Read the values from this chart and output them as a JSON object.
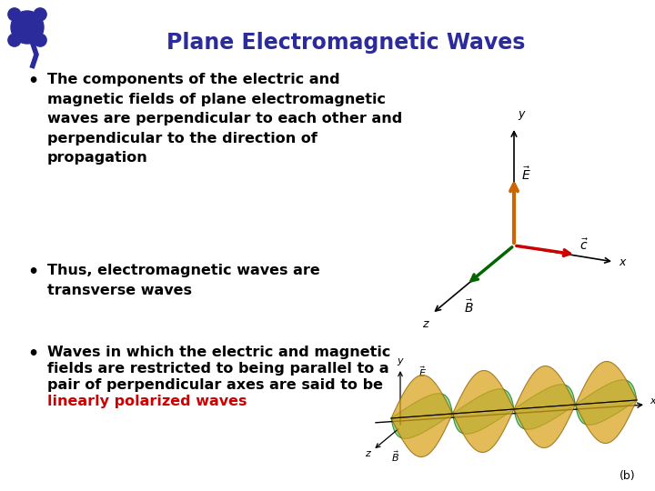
{
  "title": "Plane Electromagnetic Waves",
  "title_color": "#2B2B9B",
  "title_fontsize": 17,
  "background_color": "#FFFFFF",
  "bullet1": "The components of the electric and\nmagnetic fields of plane electromagnetic\nwaves are perpendicular to each other and\nperpendicular to the direction of\npropagation",
  "bullet2": "Thus, electromagnetic waves are\ntransverse waves",
  "bullet3_lines": [
    "Waves in which the electric and magnetic",
    "fields are restricted to being parallel to a",
    "pair of perpendicular axes are said to be"
  ],
  "bullet3_highlight": "linearly polarized waves",
  "bullet_fontsize": 11.5,
  "bullet_color": "#000000",
  "highlight_color": "#CC0000",
  "logo_color": "#2B2B9B",
  "axes_color_x": "#000000",
  "axes_color_y": "#000000",
  "axes_color_z": "#000000",
  "E_color": "#CC6600",
  "c_color": "#CC0000",
  "B_color": "#006600",
  "E_wave_color": "#DAA520",
  "B_wave_color": "#66CC66"
}
